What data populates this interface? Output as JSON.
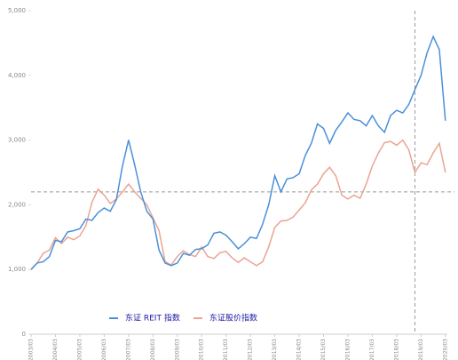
{
  "chart_data": {
    "type": "line",
    "x": [
      2003.17,
      2003.42,
      2003.67,
      2003.92,
      2004.17,
      2004.42,
      2004.67,
      2004.92,
      2005.17,
      2005.42,
      2005.67,
      2005.92,
      2006.17,
      2006.42,
      2006.67,
      2006.92,
      2007.17,
      2007.42,
      2007.67,
      2007.92,
      2008.17,
      2008.42,
      2008.67,
      2008.92,
      2009.17,
      2009.42,
      2009.67,
      2009.92,
      2010.17,
      2010.42,
      2010.67,
      2010.92,
      2011.17,
      2011.42,
      2011.67,
      2011.92,
      2012.17,
      2012.42,
      2012.67,
      2012.92,
      2013.17,
      2013.42,
      2013.67,
      2013.92,
      2014.17,
      2014.42,
      2014.67,
      2014.92,
      2015.17,
      2015.42,
      2015.67,
      2015.92,
      2016.17,
      2016.42,
      2016.67,
      2016.92,
      2017.17,
      2017.42,
      2017.67,
      2017.92,
      2018.17,
      2018.42,
      2018.67,
      2018.92,
      2019.17,
      2019.42,
      2019.67,
      2019.92,
      2020.17
    ],
    "series": [
      {
        "name": "东证 REIT 指数",
        "color": "#4a90d9",
        "values": [
          1000,
          1100,
          1120,
          1200,
          1450,
          1430,
          1580,
          1600,
          1630,
          1780,
          1760,
          1880,
          1950,
          1900,
          2080,
          2600,
          3000,
          2620,
          2200,
          1900,
          1780,
          1300,
          1100,
          1060,
          1100,
          1250,
          1220,
          1310,
          1320,
          1380,
          1560,
          1580,
          1530,
          1430,
          1320,
          1400,
          1500,
          1480,
          1700,
          2000,
          2450,
          2200,
          2400,
          2420,
          2480,
          2760,
          2950,
          3250,
          3180,
          2950,
          3150,
          3280,
          3420,
          3320,
          3300,
          3220,
          3380,
          3220,
          3120,
          3380,
          3460,
          3420,
          3550,
          3780,
          4000,
          4350,
          4600,
          4400,
          3300
        ]
      },
      {
        "name": "东证股价指数",
        "color": "#eba393",
        "values": [
          1000,
          1100,
          1250,
          1300,
          1490,
          1400,
          1500,
          1460,
          1520,
          1680,
          2040,
          2240,
          2150,
          2020,
          2090,
          2200,
          2320,
          2200,
          2100,
          2000,
          1800,
          1600,
          1120,
          1070,
          1200,
          1290,
          1230,
          1200,
          1350,
          1200,
          1170,
          1260,
          1280,
          1180,
          1110,
          1180,
          1120,
          1060,
          1120,
          1350,
          1650,
          1750,
          1760,
          1810,
          1920,
          2030,
          2230,
          2320,
          2480,
          2580,
          2450,
          2150,
          2090,
          2150,
          2100,
          2320,
          2600,
          2800,
          2960,
          2980,
          2920,
          3000,
          2850,
          2500,
          2650,
          2620,
          2800,
          2950,
          2500
        ]
      }
    ],
    "xlim": [
      2003.17,
      2020.25
    ],
    "xticks": [
      {
        "value": 2003.17,
        "label": "2003/03"
      },
      {
        "value": 2004.17,
        "label": "2004/03"
      },
      {
        "value": 2005.17,
        "label": "2005/03"
      },
      {
        "value": 2006.17,
        "label": "2006/03"
      },
      {
        "value": 2007.17,
        "label": "2007/03"
      },
      {
        "value": 2008.17,
        "label": "2008/03"
      },
      {
        "value": 2009.17,
        "label": "2009/03"
      },
      {
        "value": 2010.17,
        "label": "2010/03"
      },
      {
        "value": 2011.17,
        "label": "2011/03"
      },
      {
        "value": 2012.17,
        "label": "2012/03"
      },
      {
        "value": 2013.17,
        "label": "2013/03"
      },
      {
        "value": 2014.17,
        "label": "2014/03"
      },
      {
        "value": 2015.17,
        "label": "2015/03"
      },
      {
        "value": 2016.17,
        "label": "2016/03"
      },
      {
        "value": 2017.17,
        "label": "2017/03"
      },
      {
        "value": 2018.17,
        "label": "2018/03"
      },
      {
        "value": 2019.17,
        "label": "2019/03"
      },
      {
        "value": 2020.17,
        "label": "2020/03"
      }
    ],
    "ylim": [
      0,
      5000
    ],
    "yticks": [
      0,
      {
        "value": 1000,
        "label": "1,000"
      },
      {
        "value": 2000,
        "label": "2,000"
      },
      {
        "value": 3000,
        "label": "3,000"
      },
      {
        "value": 4000,
        "label": "4,000"
      },
      {
        "value": 5000,
        "label": "5,000"
      }
    ],
    "reference_lines": {
      "y": 2200,
      "x": 2018.92
    }
  }
}
